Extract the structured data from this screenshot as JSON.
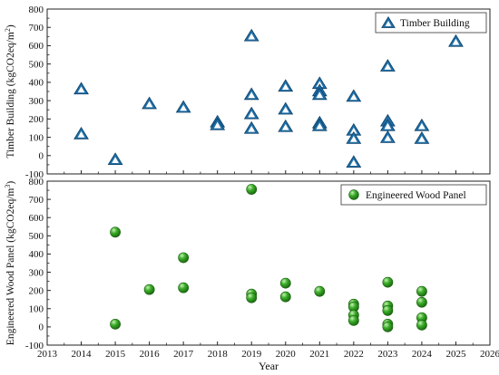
{
  "chart_data": [
    {
      "type": "scatter",
      "title": "",
      "xlabel": "",
      "ylabel": "Timber Building (kgCO2eq/m²)",
      "ylabel_parts": {
        "main": "Timber Building (kgCO2eq/m",
        "sup": "2",
        "tail": ")"
      },
      "xlim": [
        2013,
        2026
      ],
      "ylim": [
        -100,
        800
      ],
      "yticks": [
        "-100",
        "0",
        "100",
        "200",
        "300",
        "400",
        "500",
        "600",
        "700",
        "800"
      ],
      "grid": false,
      "legend_position": "top-right",
      "series": [
        {
          "name": "Timber Building",
          "marker": "triangle",
          "color": "#1f6fa8",
          "points": [
            [
              2014,
              360
            ],
            [
              2014,
              115
            ],
            [
              2015,
              -25
            ],
            [
              2016,
              280
            ],
            [
              2017,
              260
            ],
            [
              2018,
              180
            ],
            [
              2018,
              165
            ],
            [
              2019,
              650
            ],
            [
              2019,
              330
            ],
            [
              2019,
              225
            ],
            [
              2019,
              145
            ],
            [
              2020,
              375
            ],
            [
              2020,
              250
            ],
            [
              2020,
              155
            ],
            [
              2021,
              390
            ],
            [
              2021,
              350
            ],
            [
              2021,
              330
            ],
            [
              2021,
              175
            ],
            [
              2021,
              160
            ],
            [
              2022,
              320
            ],
            [
              2022,
              135
            ],
            [
              2022,
              90
            ],
            [
              2022,
              -40
            ],
            [
              2023,
              485
            ],
            [
              2023,
              185
            ],
            [
              2023,
              160
            ],
            [
              2023,
              95
            ],
            [
              2024,
              160
            ],
            [
              2024,
              90
            ],
            [
              2025,
              620
            ]
          ]
        }
      ]
    },
    {
      "type": "scatter",
      "title": "",
      "xlabel": "Year",
      "ylabel": "Engineered Wood Panel (kgCO2eq/m³)",
      "ylabel_parts": {
        "main": "Engineered Wood Panel (kgCO2eq/m",
        "sup": "3",
        "tail": ")"
      },
      "xlim": [
        2013,
        2026
      ],
      "ylim": [
        -100,
        800
      ],
      "xticks": [
        "2013",
        "2014",
        "2015",
        "2016",
        "2017",
        "2018",
        "2019",
        "2020",
        "2021",
        "2022",
        "2023",
        "2024",
        "2025",
        "2026"
      ],
      "yticks": [
        "-100",
        "0",
        "100",
        "200",
        "300",
        "400",
        "500",
        "600",
        "700",
        "800"
      ],
      "grid": false,
      "legend_position": "top-right",
      "series": [
        {
          "name": "Engineered Wood Panel",
          "marker": "circle",
          "color": "#2e9d1e",
          "points": [
            [
              2015,
              520
            ],
            [
              2015,
              15
            ],
            [
              2016,
              205
            ],
            [
              2017,
              380
            ],
            [
              2017,
              215
            ],
            [
              2019,
              755
            ],
            [
              2019,
              180
            ],
            [
              2019,
              160
            ],
            [
              2020,
              240
            ],
            [
              2020,
              165
            ],
            [
              2021,
              195
            ],
            [
              2022,
              125
            ],
            [
              2022,
              110
            ],
            [
              2022,
              65
            ],
            [
              2022,
              35
            ],
            [
              2023,
              245
            ],
            [
              2023,
              115
            ],
            [
              2023,
              90
            ],
            [
              2023,
              15
            ],
            [
              2023,
              0
            ],
            [
              2024,
              195
            ],
            [
              2024,
              135
            ],
            [
              2024,
              50
            ],
            [
              2024,
              10
            ]
          ]
        }
      ]
    }
  ]
}
